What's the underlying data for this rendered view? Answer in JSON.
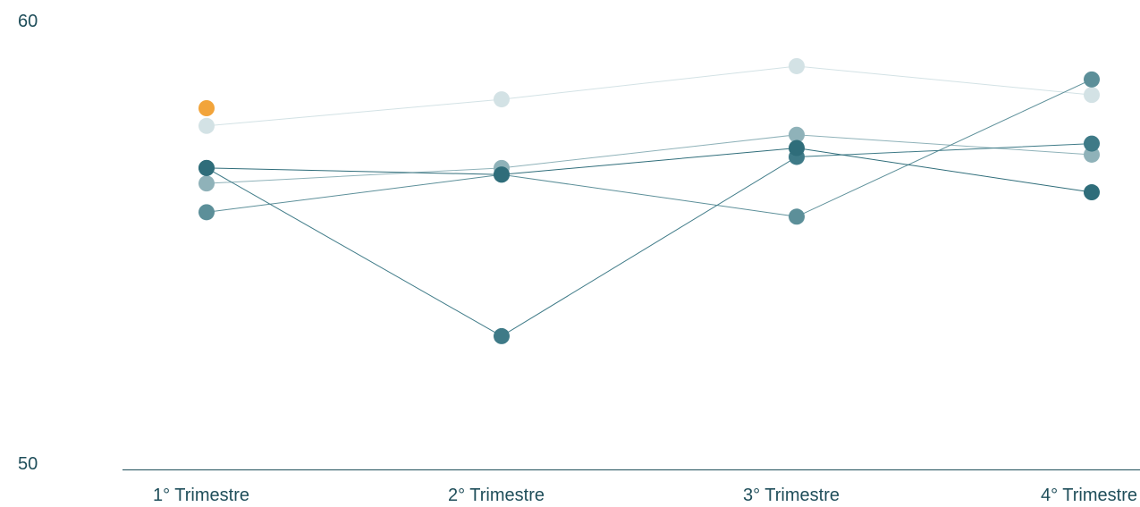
{
  "chart_data": {
    "type": "line",
    "title": "",
    "xlabel": "",
    "ylabel": "",
    "categories": [
      "1° Trimestre",
      "2° Trimestre",
      "3° Trimestre",
      "4° Trimestre"
    ],
    "ylim": [
      50,
      60
    ],
    "yticks": [
      "60",
      "50"
    ],
    "grid": false,
    "legend": "none",
    "series": [
      {
        "color": "#d3e2e5",
        "values": [
          57.6,
          58.2,
          58.95,
          58.3
        ]
      },
      {
        "color": "#8fb2b9",
        "values": [
          56.3,
          56.65,
          57.4,
          56.95
        ]
      },
      {
        "color": "#5c8f99",
        "values": [
          55.65,
          56.5,
          55.55,
          58.65
        ]
      },
      {
        "color": "#3e7a87",
        "values": [
          56.65,
          52.85,
          56.9,
          57.2
        ]
      },
      {
        "color": "#2f6d7a",
        "values": [
          56.65,
          56.5,
          57.1,
          56.1
        ]
      }
    ],
    "highlight": {
      "color": "#f2a43a",
      "category": "1° Trimestre",
      "value": 58.0
    }
  }
}
